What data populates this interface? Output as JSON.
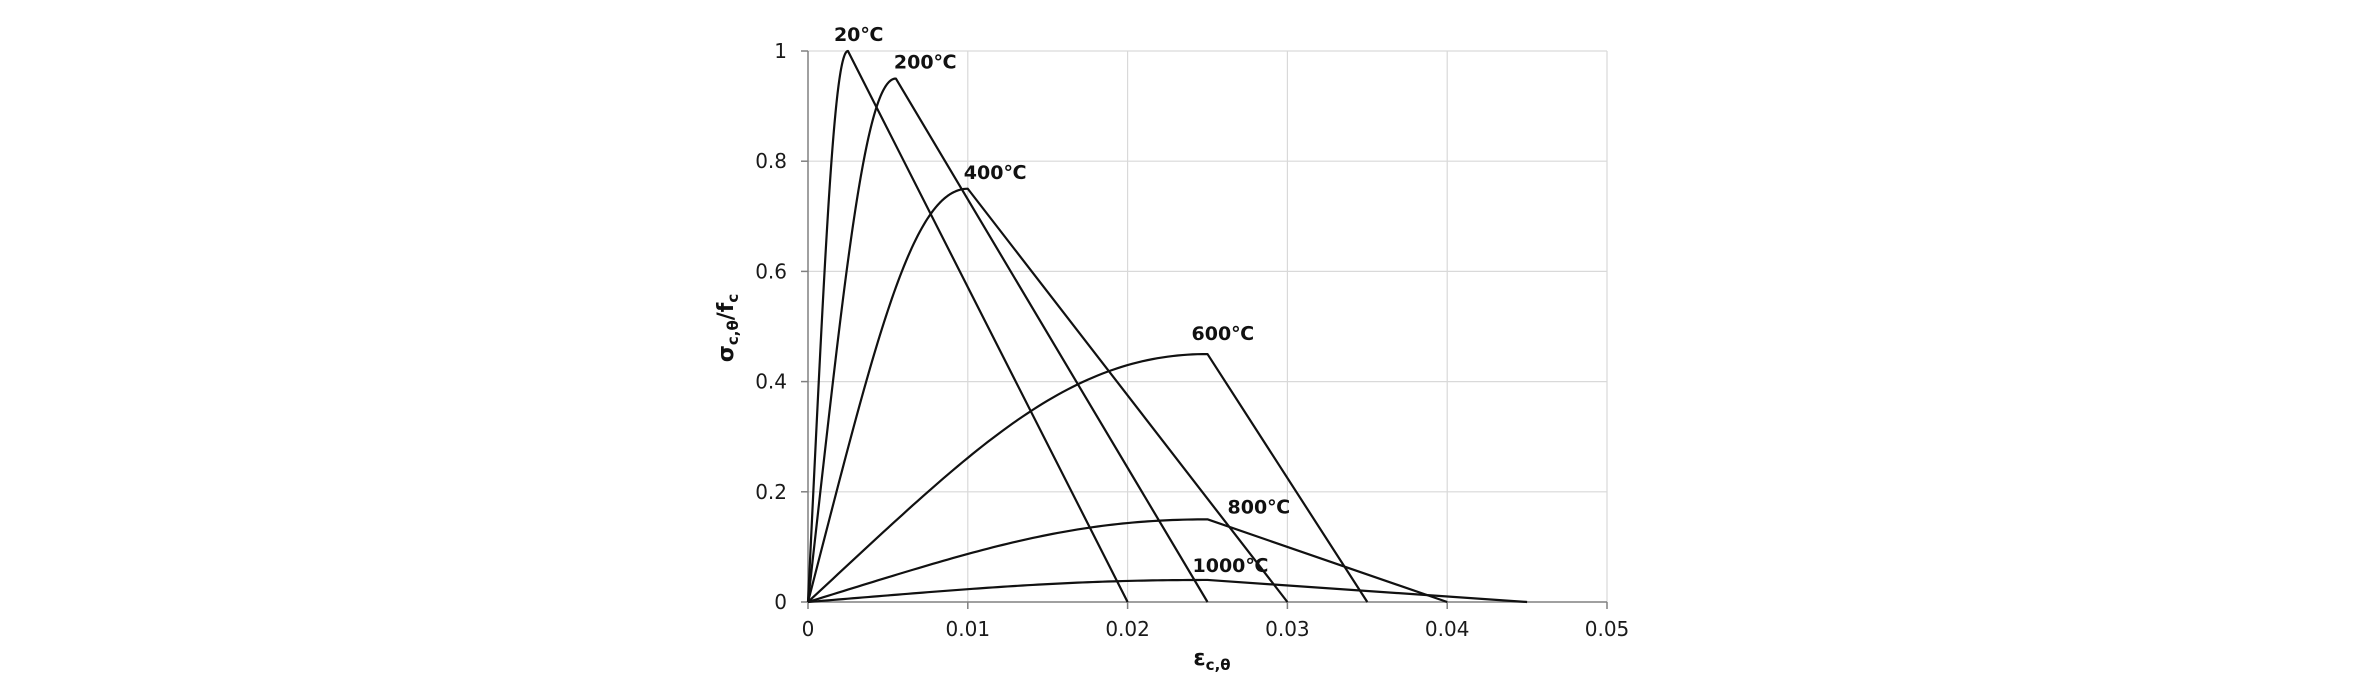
{
  "chart_data": {
    "type": "line",
    "title": "",
    "xlabel": {
      "main": "ε",
      "sub": "c,θ"
    },
    "ylabel": {
      "main": "σ",
      "sub1": "c,θ",
      "mid": "/f",
      "sub2": "c"
    },
    "xlim": [
      0,
      0.05
    ],
    "ylim": [
      0,
      1
    ],
    "x_ticks": [
      "0",
      "0.01",
      "0.02",
      "0.03",
      "0.04",
      "0.05"
    ],
    "y_ticks": [
      "0",
      "0.2",
      "0.4",
      "0.6",
      "0.8",
      "1"
    ],
    "grid": true,
    "legend": "none",
    "series": [
      {
        "name": "20℃",
        "peak_strain": 0.0025,
        "peak_stress": 1.0,
        "ultimate_strain": 0.02
      },
      {
        "name": "200℃",
        "peak_strain": 0.0055,
        "peak_stress": 0.95,
        "ultimate_strain": 0.025
      },
      {
        "name": "400℃",
        "peak_strain": 0.01,
        "peak_stress": 0.75,
        "ultimate_strain": 0.03
      },
      {
        "name": "600℃",
        "peak_strain": 0.025,
        "peak_stress": 0.45,
        "ultimate_strain": 0.035
      },
      {
        "name": "800℃",
        "peak_strain": 0.025,
        "peak_stress": 0.15,
        "ultimate_strain": 0.04
      },
      {
        "name": "1000℃",
        "peak_strain": 0.025,
        "peak_stress": 0.04,
        "ultimate_strain": 0.045
      }
    ]
  }
}
